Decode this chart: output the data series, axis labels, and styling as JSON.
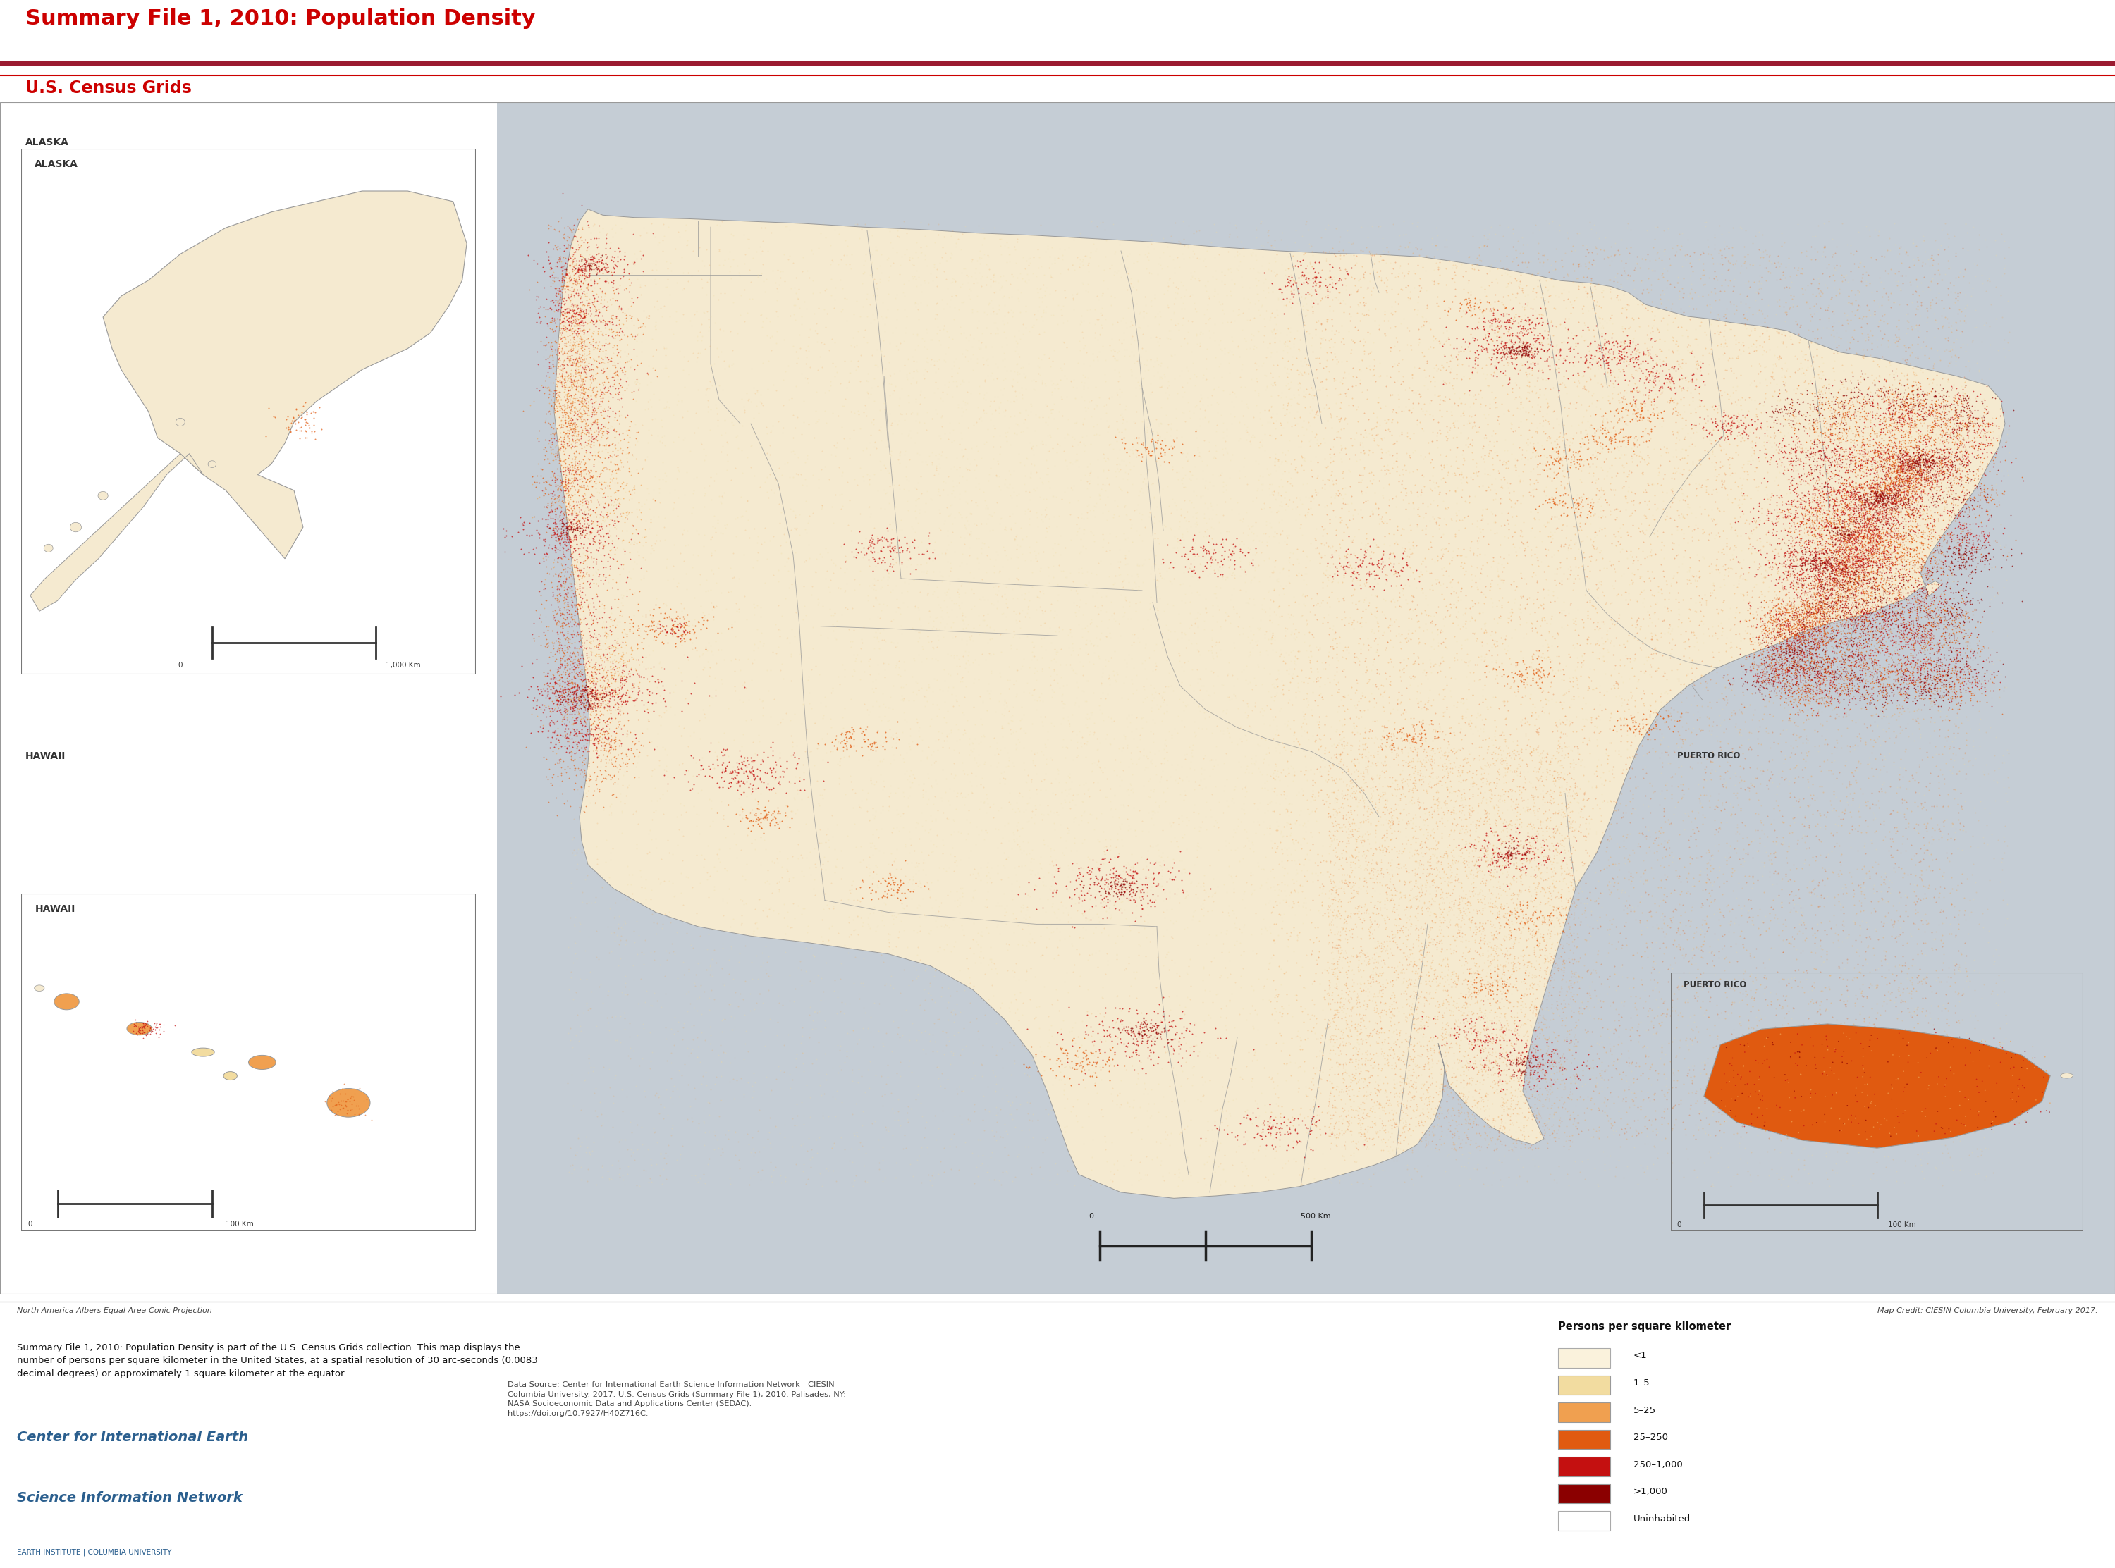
{
  "title_line1": "Summary File 1, 2010: Population Density",
  "title_line2": "U.S. Census Grids",
  "title_color": "#CC0000",
  "separator_color1": "#9B1B30",
  "separator_color2": "#CC0000",
  "bg_color": "#FFFFFF",
  "map_bg_color": "#C5CDD5",
  "map_land_color": "#F5EAD0",
  "inset_bg_color": "#FFFFFF",
  "legend_bg_color": "#E8E8E8",
  "legend_title": "Persons per square kilometer",
  "legend_items": [
    {
      "label": "<1",
      "color": "#FAF2DC",
      "border": "#AAAAAA"
    },
    {
      "label": "1–5",
      "color": "#F2DCA0",
      "border": "#999999"
    },
    {
      "label": "5–25",
      "color": "#F0A050",
      "border": "#999999"
    },
    {
      "label": "25–250",
      "color": "#E05A10",
      "border": "#999999"
    },
    {
      "label": "250–1,000",
      "color": "#C41010",
      "border": "#999999"
    },
    {
      "label": ">1,000",
      "color": "#8B0000",
      "border": "#999999"
    },
    {
      "label": "Uninhabited",
      "color": "#FFFFFF",
      "border": "#AAAAAA"
    }
  ],
  "description_text": "Summary File 1, 2010: Population Density is part of the U.S. Census Grids collection. This map displays the\nnumber of persons per square kilometer in the United States, at a spatial resolution of 30 arc-seconds (0.0083\ndecimal degrees) or approximately 1 square kilometer at the equator.",
  "data_source_text": "Data Source: Center for International Earth Science Information Network - CIESIN -\nColumbia University. 2017. U.S. Census Grids (Summary File 1), 2010. Palisades, NY:\nNASA Socioeconomic Data and Applications Center (SEDAC).\nhttps://doi.org/10.7927/H40Z716C.",
  "projection_text": "North America Albers Equal Area Conic Projection",
  "credit_text": "Map Credit: CIESIN Columbia University, February 2017.",
  "org_line1": "Center for International Earth",
  "org_line2": "Science Information Network",
  "org_line3": "EARTH INSTITUTE | COLUMBIA UNIVERSITY",
  "org_color": "#2B5F8E",
  "alaska_label": "ALASKA",
  "hawaii_label": "HAWAII",
  "puerto_rico_label": "PUERTO RICO",
  "inset_border_color": "#777777",
  "state_border_color": "#888888"
}
